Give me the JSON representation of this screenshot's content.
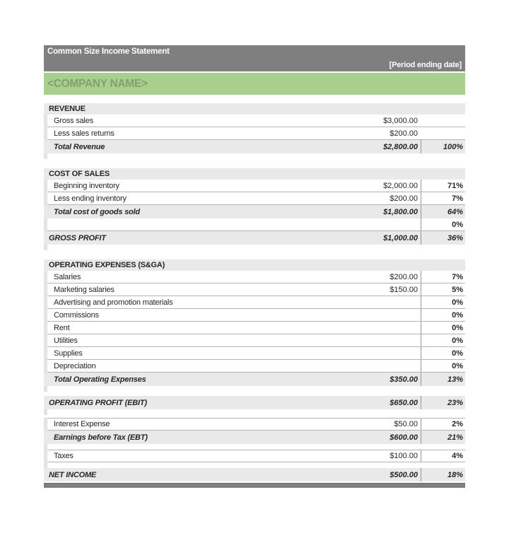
{
  "header": {
    "title": "Common Size Income Statement",
    "period_placeholder": "[Period ending date]",
    "company_name": "<COMPANY NAME>"
  },
  "colors": {
    "title_bar_gray": "#7f7f7f",
    "company_band_green": "#a9cf8e",
    "company_text_green": "#86a06c",
    "row_shade_gray": "#e9e9e9",
    "footer_bar_gray": "#7f7f7f"
  },
  "sections": [
    {
      "title": "REVENUE",
      "rows": [
        {
          "label": "Gross sales",
          "amount": "$3,000.00",
          "percent": ""
        },
        {
          "label": "Less sales returns",
          "amount": "$200.00",
          "percent": ""
        },
        {
          "label": "Total Revenue",
          "amount": "$2,800.00",
          "percent": "100%"
        }
      ]
    },
    {
      "title": "COST OF SALES",
      "rows": [
        {
          "label": "Beginning inventory",
          "amount": "$2,000.00",
          "percent": "71%"
        },
        {
          "label": "Less ending inventory",
          "amount": "$200.00",
          "percent": "7%"
        },
        {
          "label": "Total cost of goods sold",
          "amount": "$1,800.00",
          "percent": "64%"
        },
        {
          "label": "",
          "amount": "",
          "percent": "0%"
        },
        {
          "label": "GROSS PROFIT",
          "amount": "$1,000.00",
          "percent": "36%"
        }
      ]
    },
    {
      "title": "OPERATING EXPENSES (S&GA)",
      "rows": [
        {
          "label": "Salaries",
          "amount": "$200.00",
          "percent": "7%"
        },
        {
          "label": "Marketing salaries",
          "amount": "$150.00",
          "percent": "5%"
        },
        {
          "label": "Advertising and promotion materials",
          "amount": "",
          "percent": "0%"
        },
        {
          "label": "Commissions",
          "amount": "",
          "percent": "0%"
        },
        {
          "label": "Rent",
          "amount": "",
          "percent": "0%"
        },
        {
          "label": "Utilities",
          "amount": "",
          "percent": "0%"
        },
        {
          "label": "Supplies",
          "amount": "",
          "percent": "0%"
        },
        {
          "label": "Depreciation",
          "amount": "",
          "percent": "0%"
        },
        {
          "label": "Total Operating Expenses",
          "amount": "$350.00",
          "percent": "13%"
        }
      ]
    },
    {
      "title": "",
      "rows": [
        {
          "label": "OPERATING PROFIT (EBIT)",
          "amount": "$650.00",
          "percent": "23%"
        }
      ]
    },
    {
      "title": "",
      "rows": [
        {
          "label": "Interest Expense",
          "amount": "$50.00",
          "percent": "2%"
        },
        {
          "label": "Earnings before Tax (EBT)",
          "amount": "$600.00",
          "percent": "21%"
        }
      ]
    },
    {
      "title": "",
      "rows": [
        {
          "label": "Taxes",
          "amount": "$100.00",
          "percent": "4%"
        }
      ]
    },
    {
      "title": "",
      "rows": [
        {
          "label": "NET INCOME",
          "amount": "$500.00",
          "percent": "18%"
        }
      ]
    }
  ]
}
